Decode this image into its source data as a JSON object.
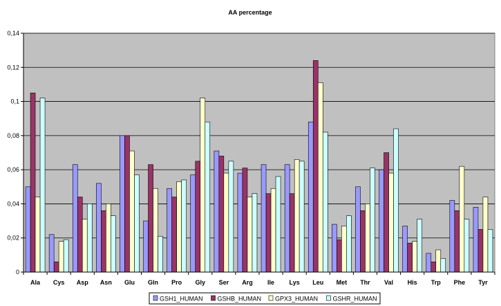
{
  "chart_data": {
    "type": "bar",
    "title": "AA percentage",
    "xlabel": "",
    "ylabel": "",
    "ylim": [
      0,
      0.14
    ],
    "y_ticks": [
      "0",
      "0,02",
      "0,04",
      "0,06",
      "0,08",
      "0,1",
      "0,12",
      "0,14"
    ],
    "grid": "horizontal",
    "legend_position": "bottom",
    "plot_background": "#c0c0c0",
    "categories": [
      "Ala",
      "Cys",
      "Asp",
      "Asn",
      "Glu",
      "Gln",
      "Pro",
      "Gly",
      "Ser",
      "Arg",
      "Ile",
      "Lys",
      "Leu",
      "Met",
      "Thr",
      "Val",
      "His",
      "Trp",
      "Phe",
      "Tyr"
    ],
    "series": [
      {
        "name": "GSH1_HUMAN",
        "color": "#9999ff",
        "values": [
          0.05,
          0.022,
          0.063,
          0.052,
          0.08,
          0.03,
          0.049,
          0.057,
          0.071,
          0.058,
          0.063,
          0.063,
          0.088,
          0.028,
          0.05,
          0.06,
          0.027,
          0.011,
          0.042,
          0.038
        ]
      },
      {
        "name": "GSHB_HUMAN",
        "color": "#993366",
        "values": [
          0.105,
          0.006,
          0.044,
          0.036,
          0.08,
          0.063,
          0.044,
          0.065,
          0.068,
          0.061,
          0.046,
          0.046,
          0.124,
          0.019,
          0.036,
          0.07,
          0.017,
          0.006,
          0.036,
          0.025
        ]
      },
      {
        "name": "GPX3_HUMAN",
        "color": "#ffffcc",
        "values": [
          0.044,
          0.018,
          0.031,
          0.04,
          0.071,
          0.049,
          0.053,
          0.102,
          0.058,
          0.044,
          0.049,
          0.066,
          0.111,
          0.027,
          0.04,
          0.058,
          0.018,
          0.013,
          0.062,
          0.044
        ]
      },
      {
        "name": "GSHR_HUMAN",
        "color": "#ccffff",
        "values": [
          0.102,
          0.019,
          0.04,
          0.033,
          0.057,
          0.021,
          0.054,
          0.088,
          0.065,
          0.046,
          0.056,
          0.065,
          0.082,
          0.033,
          0.061,
          0.084,
          0.031,
          0.008,
          0.031,
          0.025
        ]
      }
    ]
  }
}
